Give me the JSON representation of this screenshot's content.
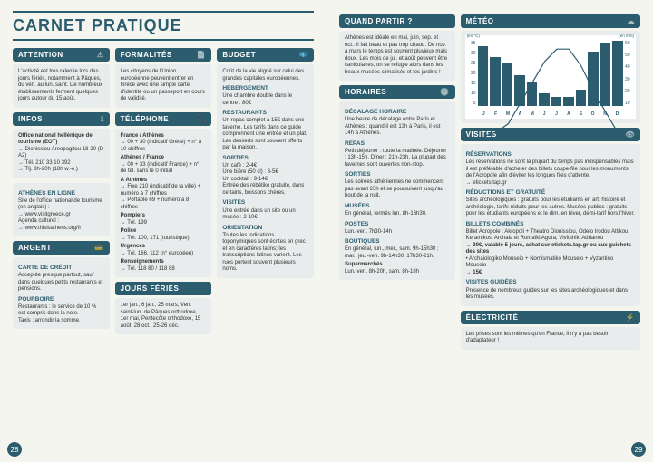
{
  "title": "CARNET PRATIQUE",
  "pageLeft": 28,
  "pageRight": 29,
  "left": {
    "attention": {
      "header": "ATTENTION",
      "icon": "⚠",
      "body": "L'activité est très ralentie lors des jours fériés, notamment à Pâques, du ven. au lun. saint. De nombreux établissements ferment quelques jours autour du 15 août."
    },
    "infos": {
      "header": "INFOS",
      "icon": "ℹ",
      "sub1": "Office national hellénique de tourisme (EOT)",
      "lines1": [
        "→ Dionissiou Areopagitou 18-20 (D A2)",
        "→ Tél. 210 33 10 392",
        "→ Tlj. 8h-20h (18h w.-e.)"
      ],
      "sub2": "ATHÈNES EN LIGNE",
      "lines2": [
        "Site de l'office national de tourisme (en anglais) :",
        "→ www.visitgreece.gr",
        "Agenda culturel :",
        "→ www.thisisathens.org/fr"
      ]
    },
    "argent": {
      "header": "ARGENT",
      "icon": "💳",
      "sub1": "CARTE DE CRÉDIT",
      "body1": "Acceptée presque partout, sauf dans quelques petits restaurants et pensions.",
      "sub2": "POURBOIRE",
      "body2": "Restaurants : le service de 10 % est compris dans la note.",
      "body3": "Taxis : arrondir la somme."
    },
    "formalites": {
      "header": "FORMALITÉS",
      "icon": "📄",
      "body": "Les citoyens de l'Union européenne peuvent entrer en Grèce avec une simple carte d'identité ou un passeport en cours de validité."
    },
    "telephone": {
      "header": "TÉLÉPHONE",
      "icon": "📞",
      "sub1": "France / Athènes",
      "lines1": [
        "→ 00 + 30 (indicatif Grèce) + n° à 10 chiffres"
      ],
      "sub2": "Athènes / France",
      "lines2": [
        "→ 00 + 33 (indicatif France) + n° de tél. sans le 0 initial"
      ],
      "sub3": "À Athènes",
      "lines3": [
        "→ Fixe 210 (indicatif de la ville) + numéro à 7 chiffres",
        "→ Portable 69 + numéro à 8 chiffres"
      ],
      "sub4": "Pompiers",
      "lines4": [
        "→ Tél. 199"
      ],
      "sub5": "Police",
      "lines5": [
        "→ Tél. 100, 171 (touristique)"
      ],
      "sub6": "Urgences",
      "lines6": [
        "→ Tél. 166, 112 (n° européen)"
      ],
      "sub7": "Renseignements",
      "lines7": [
        "→ Tél. 118 80 / 118 88"
      ]
    },
    "jours": {
      "header": "JOURS FÉRIÉS",
      "body": "1er jan., 6 jan., 25 mars, Ven. saint-lun. de Pâques orthodoxe, 1er mai, Pentecôte orthodoxe, 15 août, 28 oct., 25-26 déc."
    },
    "budget": {
      "header": "BUDGET",
      "icon": "💶",
      "body1": "Coût de la vie aligné sur celui des grandes capitales européennes.",
      "sub1": "HÉBERGEMENT",
      "body2": "Une chambre double dans le centre : 80€",
      "sub2": "RESTAURANTS",
      "body3": "Un repas complet à 15€ dans une taverne. Les tarifs dans ce guide comprennent une entrée et un plat. Les desserts sont souvent offerts par la maison.",
      "sub3": "SORTIES",
      "lines3": [
        "Un café : 2-4€",
        "Une bière (50 cl) : 3-5€",
        "Un cocktail : 9-14€",
        "Entrée des rébétiko gratuite, dans certains, boissons chères."
      ],
      "sub4": "VISITES",
      "body4": "Une entrée dans un site ou un musée : 2-10€",
      "sub5": "ORIENTATION",
      "body5": "Toutes les indications toponymiques sont écrites en grec et en caractères latins; les transcriptions latines varient. Les rues portent souvent plusieurs noms."
    }
  },
  "right": {
    "quand": {
      "header": "QUAND PARTIR ?",
      "body": "Athènes est idéale en mai, juin, sep. et oct.: il fait beau et pas trop chaud. De nov. à mars le temps est souvent pluvieux mais doux. Les mois de jul. et août peuvent être caniculaires, on se réfugie alors dans les beaux musées climatisés et les jardins !"
    },
    "horaires": {
      "header": "HORAIRES",
      "icon": "🕐",
      "sub1": "DÉCALAGE HORAIRE",
      "body1": "Une heure de décalage entre Paris et Athènes : quand il est 13h à Paris, il est 14h à Athènes.",
      "sub2": "REPAS",
      "body2": "Petit déjeuner : toute la matinée. Déjeuner : 13h-15h. Dîner : 21h-23h. La plupart des tavernes sont ouvertes non-stop.",
      "sub3": "SORTIES",
      "body3": "Les soirées athéniennes ne commencent pas avant 23h et se poursuivent jusqu'au bout de la nuit.",
      "sub4": "MUSÉES",
      "body4": "En général, fermés lun. 8h-16h30.",
      "sub5": "POSTES",
      "body5": "Lun.-ven. 7h30-14h",
      "sub6": "BOUTIQUES",
      "body6": "En général, lun., mer., sam. 9h-15h30 ; mar., jeu.-ven. 9h-14h30, 17h30-21h.",
      "sub7": "Supermarchés",
      "body7": "Lun.-ven. 8h-20h, sam. 8h-18h"
    },
    "meteo": {
      "header": "MÉTÉO",
      "icon": "☁",
      "tempLabel": "(en °C)",
      "rainLabel": "(en mm)",
      "months": [
        "J",
        "F",
        "M",
        "A",
        "M",
        "J",
        "J",
        "A",
        "S",
        "O",
        "N",
        "D"
      ],
      "bars": [
        55,
        45,
        40,
        28,
        22,
        12,
        8,
        8,
        15,
        50,
        58,
        62
      ],
      "barMax": 60,
      "line": [
        12,
        13,
        15,
        20,
        25,
        30,
        33,
        33,
        29,
        23,
        18,
        13
      ],
      "lineMax": 35,
      "yLeft": [
        "35",
        "30",
        "25",
        "20",
        "15",
        "10",
        "5"
      ],
      "yRight": [
        "60",
        "50",
        "40",
        "30",
        "20",
        "10"
      ]
    },
    "visites": {
      "header": "VISITES",
      "icon": "👁",
      "sub1": "RÉSERVATIONS",
      "body1": "Les réservations ne sont la plupart du temps pas indispensables mais il est préférable d'acheter des billets coupe-file pour les monuments de l'Acropole afin d'éviter les longues files d'attente.",
      "line1": "→ etickets.tap.gr",
      "sub2": "RÉDUCTIONS ET GRATUITÉ",
      "body2": "Sites archéologiques : gratuits pour les étudiants en art, histoire et archéologie, tarifs réduits pour les autres. Musées publics : gratuits pour les étudiants européens et le dim. en hiver, demi-tarif hors l'hiver.",
      "sub3": "BILLETS COMBINÉS",
      "body3a": "Billet Acropole : Akropoli + Theatro Dionissiou, Odeio Irodou Attikou, Keramikos, Archaia et Romaïki Agora, Vlviothiki Adrianou",
      "body3b": "→ 30€, valable 5 jours, achat sur etickets.tap.gr ou aux guichets des sites",
      "body3c": "• Archaiologiko Mouseio + Nomismatiko Mouseio + Vyzantino Mouseio",
      "body3d": "→ 15€",
      "sub4": "VISITES GUIDÉES",
      "body4": "Présence de nombreux guides sur les sites archéologiques et dans les musées."
    },
    "elec": {
      "header": "ÉLECTRICITÉ",
      "icon": "⚡",
      "body": "Les prises sont les mêmes qu'en France, il n'y a pas besoin d'adaptateur !"
    }
  },
  "colors": {
    "primary": "#2b5d6e",
    "boxbg": "#e8ecec",
    "pagebg": "#f5f5f0"
  }
}
